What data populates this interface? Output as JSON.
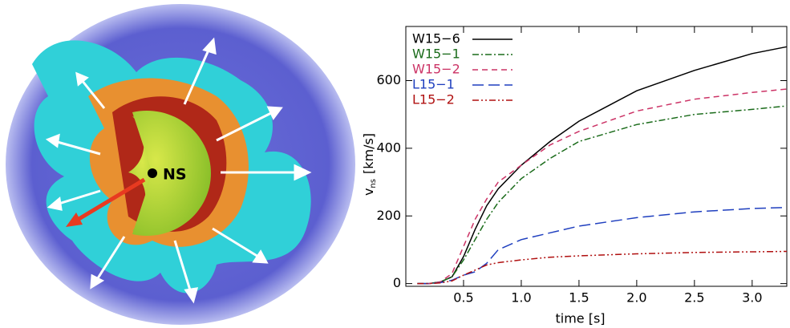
{
  "image_label": "NS",
  "chart_data": {
    "type": "line",
    "xlabel": "time [s]",
    "ylabel": "v",
    "ylabel_sub": "ns",
    "ylabel_unit": "[km/s]",
    "x": [
      0.1,
      0.2,
      0.3,
      0.4,
      0.5,
      0.6,
      0.7,
      0.8,
      1.0,
      1.25,
      1.5,
      2.0,
      2.5,
      3.0,
      3.3
    ],
    "series": [
      {
        "name": "W15−6",
        "color": "#000000",
        "dash": "none",
        "values": [
          0,
          0,
          5,
          20,
          80,
          160,
          230,
          280,
          350,
          420,
          480,
          570,
          630,
          680,
          700
        ]
      },
      {
        "name": "W15−1",
        "color": "#1a6b1a",
        "dash": "8 3 2 3",
        "values": [
          0,
          0,
          5,
          20,
          70,
          130,
          190,
          240,
          310,
          370,
          420,
          470,
          500,
          515,
          525
        ]
      },
      {
        "name": "W15−2",
        "color": "#cc3366",
        "dash": "7 5",
        "values": [
          0,
          0,
          5,
          30,
          110,
          190,
          250,
          300,
          350,
          410,
          450,
          510,
          545,
          565,
          575
        ]
      },
      {
        "name": "L15−1",
        "color": "#1f3fbf",
        "dash": "14 6",
        "values": [
          0,
          0,
          3,
          10,
          25,
          35,
          60,
          100,
          130,
          150,
          170,
          195,
          212,
          222,
          225
        ]
      },
      {
        "name": "L15−2",
        "color": "#b01010",
        "dash": "8 3 2 3 2 3",
        "values": [
          0,
          0,
          2,
          8,
          25,
          40,
          55,
          62,
          70,
          78,
          82,
          88,
          92,
          94,
          95
        ]
      }
    ],
    "xlim": [
      0,
      3.3
    ],
    "ylim": [
      -8,
      760
    ],
    "xticks": [
      {
        "value": 0.5,
        "label": "0.5"
      },
      {
        "value": 1.0,
        "label": "1.0"
      },
      {
        "value": 1.5,
        "label": "1.5"
      },
      {
        "value": 2.0,
        "label": "2.0"
      },
      {
        "value": 2.5,
        "label": "2.5"
      },
      {
        "value": 3.0,
        "label": "3.0"
      }
    ],
    "yticks": [
      0,
      200,
      400,
      600
    ],
    "legend": "upper-left"
  }
}
